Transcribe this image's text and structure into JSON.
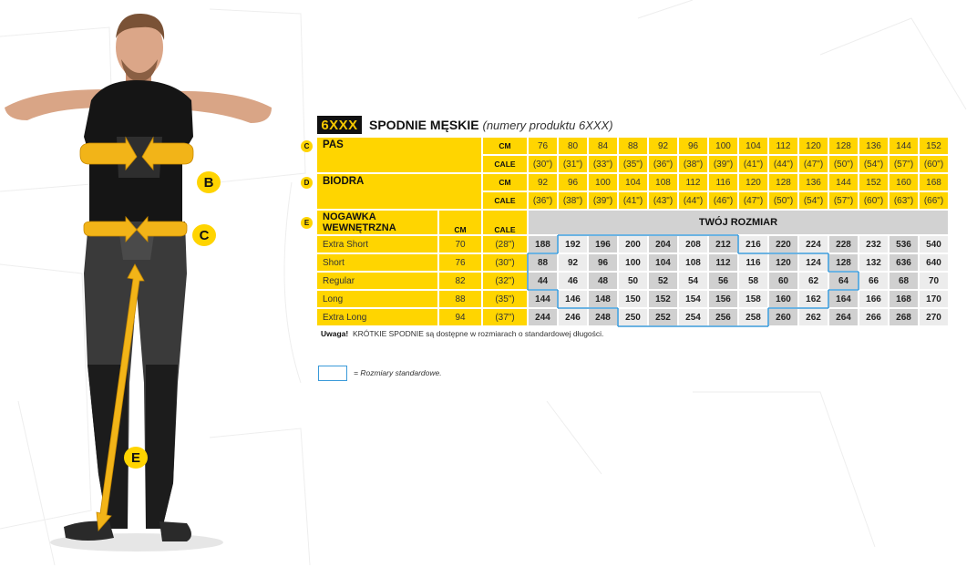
{
  "header": {
    "code": "6XXX",
    "title": "SPODNIE MĘSKIE",
    "subtitle": "(numery produktu 6XXX)"
  },
  "figure": {
    "markers": [
      "B",
      "C",
      "E"
    ]
  },
  "colors": {
    "accent_yellow": "#ffd500",
    "standard_outline": "#3a9ad9",
    "grey_dark": "#d0d0d0",
    "grey_light": "#ececec"
  },
  "waist": {
    "marker": "C",
    "label": "PAS",
    "cm_label": "CM",
    "cale_label": "CALE",
    "cm": [
      "76",
      "80",
      "84",
      "88",
      "92",
      "96",
      "100",
      "104",
      "112",
      "120",
      "128",
      "136",
      "144",
      "152"
    ],
    "cale": [
      "(30\")",
      "(31\")",
      "(33\")",
      "(35\")",
      "(36\")",
      "(38\")",
      "(39\")",
      "(41\")",
      "(44\")",
      "(47\")",
      "(50\")",
      "(54\")",
      "(57\")",
      "(60\")"
    ]
  },
  "hips": {
    "marker": "D",
    "label": "BIODRA",
    "cm_label": "CM",
    "cale_label": "CALE",
    "cm": [
      "92",
      "96",
      "100",
      "104",
      "108",
      "112",
      "116",
      "120",
      "128",
      "136",
      "144",
      "152",
      "160",
      "168"
    ],
    "cale": [
      "(36\")",
      "(38\")",
      "(39\")",
      "(41\")",
      "(43\")",
      "(44\")",
      "(46\")",
      "(47\")",
      "(50\")",
      "(54\")",
      "(57\")",
      "(60\")",
      "(63\")",
      "(66\")"
    ]
  },
  "inseam": {
    "marker": "E",
    "label": "NOGAWKA WEWNĘTRZNA",
    "cm_label": "CM",
    "cale_label": "CALE",
    "size_header": "TWÓJ ROZMIAR",
    "rows": [
      {
        "name": "Extra Short",
        "cm": "70",
        "cale": "(28\")",
        "sizes": [
          "188",
          "192",
          "196",
          "200",
          "204",
          "208",
          "212",
          "216",
          "220",
          "224",
          "228",
          "232",
          "536",
          "540"
        ],
        "standard": [
          1,
          6
        ]
      },
      {
        "name": "Short",
        "cm": "76",
        "cale": "(30\")",
        "sizes": [
          "88",
          "92",
          "96",
          "100",
          "104",
          "108",
          "112",
          "116",
          "120",
          "124",
          "128",
          "132",
          "636",
          "640"
        ],
        "standard": [
          0,
          9
        ]
      },
      {
        "name": "Regular",
        "cm": "82",
        "cale": "(32\")",
        "sizes": [
          "44",
          "46",
          "48",
          "50",
          "52",
          "54",
          "56",
          "58",
          "60",
          "62",
          "64",
          "66",
          "68",
          "70"
        ],
        "standard": [
          0,
          10
        ]
      },
      {
        "name": "Long",
        "cm": "88",
        "cale": "(35\")",
        "sizes": [
          "144",
          "146",
          "148",
          "150",
          "152",
          "154",
          "156",
          "158",
          "160",
          "162",
          "164",
          "166",
          "168",
          "170"
        ],
        "standard": [
          1,
          9
        ]
      },
      {
        "name": "Extra Long",
        "cm": "94",
        "cale": "(37\")",
        "sizes": [
          "244",
          "246",
          "248",
          "250",
          "252",
          "254",
          "256",
          "258",
          "260",
          "262",
          "264",
          "266",
          "268",
          "270"
        ],
        "standard": [
          3,
          7
        ]
      }
    ]
  },
  "note": {
    "bold": "Uwaga!",
    "text": "KRÓTKIE SPODNIE są dostępne w rozmiarach o standardowej długości."
  },
  "legend": {
    "text": "= Rozmiary standardowe."
  }
}
